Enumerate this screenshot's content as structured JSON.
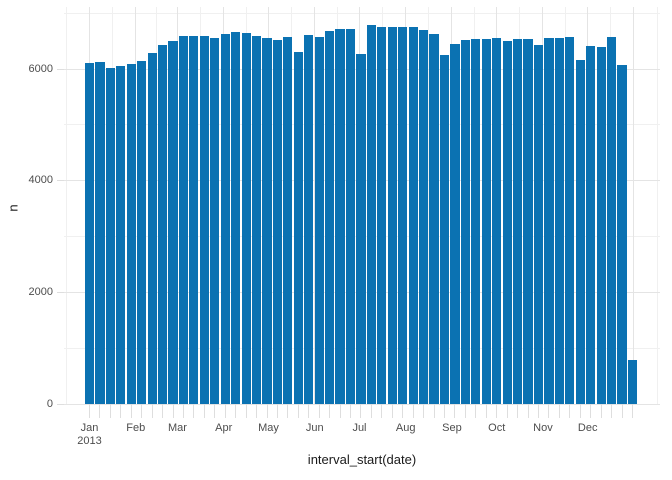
{
  "colors": {
    "background": "#ffffff",
    "bar": "#0b72b2",
    "grid_major": "#e4e4e4",
    "grid_minor": "#f0f0f0",
    "tick_mark": "#dedede",
    "tick_label": "#4d4d4d",
    "axis_title": "#1a1a1a"
  },
  "chart_data": {
    "type": "bar",
    "title": "",
    "xlabel": "interval_start(date)",
    "ylabel": "n",
    "legend": "none",
    "grid": "major+minor",
    "ylim": [
      0,
      7115
    ],
    "x_unit": "week",
    "x": [
      "2013-01-01",
      "2013-01-08",
      "2013-01-15",
      "2013-01-22",
      "2013-01-29",
      "2013-02-05",
      "2013-02-12",
      "2013-02-19",
      "2013-02-26",
      "2013-03-05",
      "2013-03-12",
      "2013-03-19",
      "2013-03-26",
      "2013-04-02",
      "2013-04-09",
      "2013-04-16",
      "2013-04-23",
      "2013-04-30",
      "2013-05-07",
      "2013-05-14",
      "2013-05-21",
      "2013-05-28",
      "2013-06-04",
      "2013-06-11",
      "2013-06-18",
      "2013-06-25",
      "2013-07-02",
      "2013-07-09",
      "2013-07-16",
      "2013-07-23",
      "2013-07-30",
      "2013-08-06",
      "2013-08-13",
      "2013-08-20",
      "2013-08-27",
      "2013-09-03",
      "2013-09-10",
      "2013-09-17",
      "2013-09-24",
      "2013-10-01",
      "2013-10-08",
      "2013-10-15",
      "2013-10-22",
      "2013-10-29",
      "2013-11-05",
      "2013-11-12",
      "2013-11-19",
      "2013-11-26",
      "2013-12-03",
      "2013-12-10",
      "2013-12-17",
      "2013-12-24",
      "2013-12-31"
    ],
    "values": [
      6110,
      6120,
      6020,
      6050,
      6090,
      6140,
      6280,
      6430,
      6500,
      6590,
      6590,
      6590,
      6560,
      6630,
      6660,
      6640,
      6590,
      6550,
      6520,
      6570,
      6310,
      6610,
      6580,
      6680,
      6710,
      6710,
      6270,
      6790,
      6760,
      6760,
      6760,
      6750,
      6700,
      6630,
      6250,
      6450,
      6520,
      6540,
      6540,
      6560,
      6510,
      6540,
      6530,
      6440,
      6550,
      6550,
      6580,
      6170,
      6420,
      6390,
      6580,
      6070,
      790
    ],
    "x_axis": {
      "months": [
        {
          "label": "Jan",
          "sub": "2013",
          "day": 0
        },
        {
          "label": "Feb",
          "day": 31
        },
        {
          "label": "Mar",
          "day": 59
        },
        {
          "label": "Apr",
          "day": 90
        },
        {
          "label": "May",
          "day": 120
        },
        {
          "label": "Jun",
          "day": 151
        },
        {
          "label": "Jul",
          "day": 181
        },
        {
          "label": "Aug",
          "day": 212
        },
        {
          "label": "Sep",
          "day": 243
        },
        {
          "label": "Oct",
          "day": 273
        },
        {
          "label": "Nov",
          "day": 304
        },
        {
          "label": "Dec",
          "day": 334
        }
      ]
    },
    "y_axis": {
      "ticks": [
        0,
        2000,
        4000,
        6000
      ],
      "minor": [
        1000,
        3000,
        5000,
        7000
      ]
    }
  }
}
